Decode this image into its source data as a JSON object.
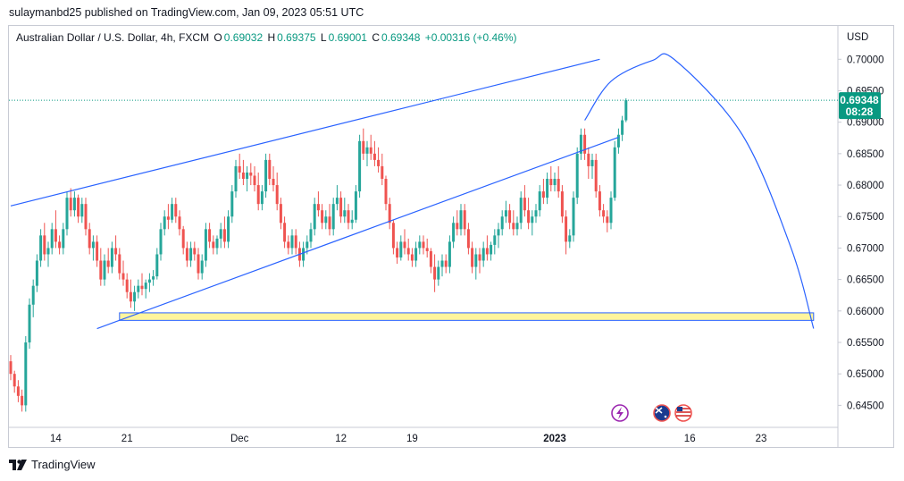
{
  "publisher": "sulaymanbd25 published on TradingView.com, Jan 09, 2023 05:51 UTC",
  "legend": {
    "symbol": "Australian Dollar / U.S. Dollar, 4h, FXCM",
    "open_label": "O",
    "open": "0.69032",
    "high_label": "H",
    "high": "0.69375",
    "low_label": "L",
    "low": "0.69001",
    "close_label": "C",
    "close": "0.69348",
    "change": "+0.00316 (+0.46%)"
  },
  "footer": {
    "brand": "TradingView",
    "logo_icon": "tradingview-logo-icon"
  },
  "colors": {
    "up": "#26a69a",
    "down": "#ef5350",
    "trendline": "#2962ff",
    "zone_fill": "#fff59d",
    "price_tag": "#089981",
    "grid": "#f0f3fa"
  },
  "chart_data": {
    "type": "candlestick",
    "currency": "USD",
    "y_ticks": [
      "0.70000",
      "0.69500",
      "0.69000",
      "0.68500",
      "0.68000",
      "0.67500",
      "0.67000",
      "0.66500",
      "0.66000",
      "0.65500",
      "0.65000",
      "0.64500"
    ],
    "ylim": [
      0.6415,
      0.7053
    ],
    "x_ticks": [
      "14",
      "21",
      "Dec",
      "12",
      "19",
      "2023",
      "16",
      "23"
    ],
    "last_price": "0.69348",
    "countdown": "08:28",
    "event_icons": [
      "lightning-icon",
      "australia-flag-icon",
      "usa-flag-icon"
    ],
    "candles_ohlc": [
      [
        0.652,
        0.653,
        0.649,
        0.65
      ],
      [
        0.65,
        0.6505,
        0.647,
        0.648
      ],
      [
        0.648,
        0.649,
        0.6455,
        0.6465
      ],
      [
        0.6465,
        0.6475,
        0.644,
        0.645
      ],
      [
        0.645,
        0.656,
        0.644,
        0.655
      ],
      [
        0.655,
        0.662,
        0.654,
        0.661
      ],
      [
        0.661,
        0.665,
        0.659,
        0.664
      ],
      [
        0.664,
        0.669,
        0.663,
        0.668
      ],
      [
        0.668,
        0.673,
        0.667,
        0.672
      ],
      [
        0.672,
        0.674,
        0.668,
        0.669
      ],
      [
        0.669,
        0.671,
        0.667,
        0.67
      ],
      [
        0.67,
        0.674,
        0.669,
        0.673
      ],
      [
        0.673,
        0.676,
        0.67,
        0.671
      ],
      [
        0.671,
        0.672,
        0.669,
        0.67
      ],
      [
        0.67,
        0.674,
        0.669,
        0.673
      ],
      [
        0.673,
        0.679,
        0.672,
        0.678
      ],
      [
        0.678,
        0.6795,
        0.675,
        0.676
      ],
      [
        0.676,
        0.679,
        0.675,
        0.678
      ],
      [
        0.678,
        0.6785,
        0.674,
        0.675
      ],
      [
        0.675,
        0.678,
        0.674,
        0.677
      ],
      [
        0.677,
        0.678,
        0.672,
        0.673
      ],
      [
        0.673,
        0.674,
        0.669,
        0.67
      ],
      [
        0.67,
        0.672,
        0.668,
        0.671
      ],
      [
        0.671,
        0.672,
        0.667,
        0.668
      ],
      [
        0.668,
        0.67,
        0.664,
        0.665
      ],
      [
        0.665,
        0.669,
        0.664,
        0.668
      ],
      [
        0.668,
        0.67,
        0.666,
        0.667
      ],
      [
        0.667,
        0.671,
        0.666,
        0.67
      ],
      [
        0.67,
        0.672,
        0.668,
        0.669
      ],
      [
        0.669,
        0.67,
        0.665,
        0.666
      ],
      [
        0.666,
        0.668,
        0.664,
        0.665
      ],
      [
        0.665,
        0.666,
        0.662,
        0.663
      ],
      [
        0.663,
        0.665,
        0.6605,
        0.6615
      ],
      [
        0.6615,
        0.664,
        0.66,
        0.663
      ],
      [
        0.663,
        0.665,
        0.662,
        0.664
      ],
      [
        0.664,
        0.666,
        0.6625,
        0.6635
      ],
      [
        0.6635,
        0.665,
        0.662,
        0.6645
      ],
      [
        0.6645,
        0.666,
        0.663,
        0.665
      ],
      [
        0.665,
        0.6665,
        0.664,
        0.6655
      ],
      [
        0.6655,
        0.67,
        0.665,
        0.669
      ],
      [
        0.669,
        0.674,
        0.668,
        0.673
      ],
      [
        0.673,
        0.676,
        0.672,
        0.675
      ],
      [
        0.675,
        0.677,
        0.673,
        0.6745
      ],
      [
        0.6745,
        0.678,
        0.674,
        0.677
      ],
      [
        0.677,
        0.678,
        0.674,
        0.675
      ],
      [
        0.675,
        0.676,
        0.672,
        0.673
      ],
      [
        0.673,
        0.6735,
        0.669,
        0.67
      ],
      [
        0.67,
        0.671,
        0.667,
        0.668
      ],
      [
        0.668,
        0.671,
        0.667,
        0.67
      ],
      [
        0.67,
        0.671,
        0.668,
        0.669
      ],
      [
        0.669,
        0.67,
        0.665,
        0.666
      ],
      [
        0.666,
        0.669,
        0.665,
        0.668
      ],
      [
        0.668,
        0.674,
        0.667,
        0.673
      ],
      [
        0.673,
        0.674,
        0.67,
        0.671
      ],
      [
        0.671,
        0.672,
        0.669,
        0.67
      ],
      [
        0.67,
        0.672,
        0.669,
        0.6715
      ],
      [
        0.6715,
        0.674,
        0.67,
        0.673
      ],
      [
        0.673,
        0.675,
        0.67,
        0.671
      ],
      [
        0.671,
        0.676,
        0.67,
        0.675
      ],
      [
        0.675,
        0.68,
        0.674,
        0.679
      ],
      [
        0.679,
        0.684,
        0.678,
        0.683
      ],
      [
        0.683,
        0.685,
        0.681,
        0.682
      ],
      [
        0.682,
        0.684,
        0.68,
        0.681
      ],
      [
        0.681,
        0.683,
        0.679,
        0.682
      ],
      [
        0.682,
        0.6835,
        0.68,
        0.6815
      ],
      [
        0.6815,
        0.683,
        0.679,
        0.68
      ],
      [
        0.68,
        0.682,
        0.676,
        0.677
      ],
      [
        0.677,
        0.68,
        0.676,
        0.679
      ],
      [
        0.679,
        0.685,
        0.678,
        0.684
      ],
      [
        0.684,
        0.685,
        0.68,
        0.681
      ],
      [
        0.681,
        0.683,
        0.679,
        0.68
      ],
      [
        0.68,
        0.682,
        0.676,
        0.677
      ],
      [
        0.677,
        0.678,
        0.673,
        0.674
      ],
      [
        0.674,
        0.675,
        0.67,
        0.671
      ],
      [
        0.671,
        0.672,
        0.669,
        0.67
      ],
      [
        0.67,
        0.673,
        0.669,
        0.672
      ],
      [
        0.672,
        0.673,
        0.669,
        0.67
      ],
      [
        0.67,
        0.671,
        0.667,
        0.668
      ],
      [
        0.668,
        0.671,
        0.667,
        0.67
      ],
      [
        0.67,
        0.672,
        0.669,
        0.671
      ],
      [
        0.671,
        0.674,
        0.67,
        0.673
      ],
      [
        0.673,
        0.678,
        0.672,
        0.677
      ],
      [
        0.677,
        0.679,
        0.675,
        0.676
      ],
      [
        0.676,
        0.677,
        0.673,
        0.674
      ],
      [
        0.674,
        0.676,
        0.673,
        0.675
      ],
      [
        0.675,
        0.677,
        0.672,
        0.673
      ],
      [
        0.673,
        0.678,
        0.672,
        0.677
      ],
      [
        0.677,
        0.68,
        0.676,
        0.678
      ],
      [
        0.678,
        0.679,
        0.674,
        0.675
      ],
      [
        0.675,
        0.678,
        0.674,
        0.676
      ],
      [
        0.676,
        0.677,
        0.673,
        0.674
      ],
      [
        0.674,
        0.676,
        0.673,
        0.6745
      ],
      [
        0.6745,
        0.68,
        0.674,
        0.679
      ],
      [
        0.679,
        0.688,
        0.678,
        0.687
      ],
      [
        0.687,
        0.689,
        0.684,
        0.685
      ],
      [
        0.685,
        0.687,
        0.683,
        0.686
      ],
      [
        0.686,
        0.688,
        0.684,
        0.685
      ],
      [
        0.685,
        0.687,
        0.683,
        0.684
      ],
      [
        0.684,
        0.686,
        0.682,
        0.683
      ],
      [
        0.683,
        0.685,
        0.68,
        0.681
      ],
      [
        0.681,
        0.6815,
        0.676,
        0.677
      ],
      [
        0.677,
        0.678,
        0.673,
        0.674
      ],
      [
        0.674,
        0.6745,
        0.669,
        0.67
      ],
      [
        0.67,
        0.671,
        0.6675,
        0.6685
      ],
      [
        0.6685,
        0.672,
        0.668,
        0.671
      ],
      [
        0.671,
        0.673,
        0.669,
        0.67
      ],
      [
        0.67,
        0.6715,
        0.668,
        0.669
      ],
      [
        0.669,
        0.67,
        0.667,
        0.668
      ],
      [
        0.668,
        0.671,
        0.667,
        0.67
      ],
      [
        0.67,
        0.672,
        0.669,
        0.671
      ],
      [
        0.671,
        0.672,
        0.669,
        0.67
      ],
      [
        0.67,
        0.6715,
        0.6685,
        0.6695
      ],
      [
        0.6695,
        0.67,
        0.666,
        0.667
      ],
      [
        0.667,
        0.669,
        0.663,
        0.665
      ],
      [
        0.665,
        0.668,
        0.664,
        0.667
      ],
      [
        0.667,
        0.669,
        0.6655,
        0.668
      ],
      [
        0.668,
        0.669,
        0.666,
        0.667
      ],
      [
        0.667,
        0.672,
        0.666,
        0.671
      ],
      [
        0.671,
        0.675,
        0.67,
        0.674
      ],
      [
        0.674,
        0.676,
        0.672,
        0.673
      ],
      [
        0.673,
        0.677,
        0.672,
        0.676
      ],
      [
        0.676,
        0.677,
        0.672,
        0.673
      ],
      [
        0.673,
        0.674,
        0.669,
        0.67
      ],
      [
        0.67,
        0.671,
        0.666,
        0.667
      ],
      [
        0.667,
        0.67,
        0.665,
        0.669
      ],
      [
        0.669,
        0.67,
        0.666,
        0.668
      ],
      [
        0.668,
        0.671,
        0.667,
        0.67
      ],
      [
        0.67,
        0.672,
        0.668,
        0.669
      ],
      [
        0.669,
        0.671,
        0.668,
        0.6705
      ],
      [
        0.6705,
        0.673,
        0.669,
        0.672
      ],
      [
        0.672,
        0.674,
        0.67,
        0.673
      ],
      [
        0.673,
        0.676,
        0.672,
        0.675
      ],
      [
        0.675,
        0.6775,
        0.674,
        0.676
      ],
      [
        0.676,
        0.677,
        0.673,
        0.674
      ],
      [
        0.674,
        0.676,
        0.672,
        0.673
      ],
      [
        0.673,
        0.675,
        0.672,
        0.674
      ],
      [
        0.674,
        0.679,
        0.673,
        0.678
      ],
      [
        0.678,
        0.68,
        0.675,
        0.676
      ],
      [
        0.676,
        0.678,
        0.673,
        0.674
      ],
      [
        0.674,
        0.676,
        0.672,
        0.675
      ],
      [
        0.675,
        0.677,
        0.674,
        0.676
      ],
      [
        0.676,
        0.68,
        0.675,
        0.679
      ],
      [
        0.679,
        0.681,
        0.677,
        0.678
      ],
      [
        0.678,
        0.682,
        0.677,
        0.681
      ],
      [
        0.681,
        0.683,
        0.679,
        0.68
      ],
      [
        0.68,
        0.682,
        0.679,
        0.681
      ],
      [
        0.681,
        0.683,
        0.678,
        0.679
      ],
      [
        0.679,
        0.68,
        0.674,
        0.675
      ],
      [
        0.675,
        0.676,
        0.669,
        0.671
      ],
      [
        0.671,
        0.673,
        0.67,
        0.672
      ],
      [
        0.672,
        0.679,
        0.671,
        0.678
      ],
      [
        0.678,
        0.686,
        0.677,
        0.685
      ],
      [
        0.685,
        0.689,
        0.684,
        0.688
      ],
      [
        0.688,
        0.689,
        0.684,
        0.685
      ],
      [
        0.685,
        0.686,
        0.681,
        0.683
      ],
      [
        0.683,
        0.685,
        0.681,
        0.684
      ],
      [
        0.684,
        0.685,
        0.678,
        0.679
      ],
      [
        0.679,
        0.68,
        0.675,
        0.676
      ],
      [
        0.676,
        0.677,
        0.674,
        0.675
      ],
      [
        0.675,
        0.676,
        0.6725,
        0.674
      ],
      [
        0.674,
        0.679,
        0.673,
        0.678
      ],
      [
        0.678,
        0.687,
        0.6775,
        0.686
      ],
      [
        0.686,
        0.689,
        0.685,
        0.688
      ],
      [
        0.688,
        0.691,
        0.687,
        0.6903
      ],
      [
        0.6903,
        0.6938,
        0.69,
        0.6935
      ]
    ],
    "drawings": {
      "upper_channel_line": {
        "from": [
          0,
          0.6767
        ],
        "to": [
          157,
          0.7
        ],
        "style": "solid"
      },
      "lower_channel_line": {
        "from": [
          23,
          0.6572
        ],
        "to": [
          162,
          0.6876
        ],
        "style": "solid"
      },
      "support_zone": {
        "x_from": 29,
        "x_to": 214,
        "price_low": 0.6585,
        "price_high": 0.6597
      },
      "projection_curve": {
        "points": [
          [
            153,
            0.6903
          ],
          [
            160,
            0.6965
          ],
          [
            171,
            0.6998
          ],
          [
            177,
            0.6999
          ],
          [
            195,
            0.688
          ],
          [
            208,
            0.67
          ],
          [
            214,
            0.6572
          ]
        ]
      },
      "last_price_line": 0.69348
    }
  }
}
